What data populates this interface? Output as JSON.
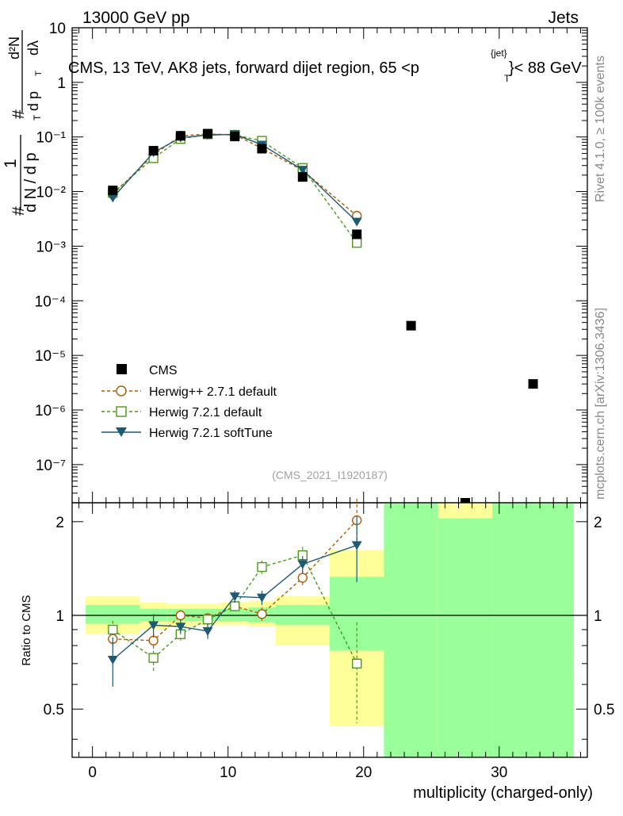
{
  "header": {
    "left": "13000 GeV pp",
    "right": "Jets"
  },
  "side_labels": {
    "rivet": "Rivet 4.1.0, ≥ 100k events",
    "mcplots": "mcplots.cern.ch [arXiv:1306.3436]"
  },
  "chart_data": {
    "type": "scatter",
    "title": "CMS, 13 TeV, AK8 jets, forward dijet region, 65 <p_T^{jet}< 88 GeV",
    "title_parts": {
      "main": "CMS, 13 TeV, AK8 jets, forward dijet region, 65 <p",
      "sub": "T",
      "sup": "{jet}",
      "end": "}< 88 GeV"
    },
    "watermark": "(CMS_2021_I1920187)",
    "xlabel": "multiplicity (charged-only)",
    "xlim": [
      -1.5,
      36.5
    ],
    "x_ticks": [
      0,
      10,
      20,
      30
    ],
    "main": {
      "yscale": "log",
      "ylim": [
        2e-08,
        10
      ],
      "ylabel": "1/(dN/dp_T) d²N/(dp_T dλ)",
      "ylabel_parts": {
        "hash": "#",
        "one": "1",
        "denom": "d N / d p",
        "denom_sub": "T",
        "num": "d²N",
        "num_d": "d p",
        "num_d_sub": "T",
        "num_dl": "dλ"
      },
      "y_tick_labels": [
        "10",
        "1",
        "10⁻¹",
        "10⁻²",
        "10⁻³",
        "10⁻⁴",
        "10⁻⁵",
        "10⁻⁶",
        "10⁻⁷"
      ],
      "y_tick_values": [
        10,
        1,
        0.1,
        0.01,
        0.001,
        0.0001,
        1e-05,
        1e-06,
        1e-07
      ]
    },
    "ratio": {
      "ylabel": "Ratio to CMS",
      "ylim": [
        0.35,
        2.3
      ],
      "y_ticks": [
        0.5,
        1,
        2
      ],
      "y_tick_labels": [
        "0.5",
        "1",
        "2"
      ]
    },
    "data": {
      "name": "CMS",
      "color": "#000000",
      "x": [
        1.5,
        4.5,
        6.5,
        8.5,
        10.5,
        12.5,
        15.5,
        19.5,
        23.5,
        27.5,
        32.5
      ],
      "y": [
        0.0105,
        0.056,
        0.105,
        0.115,
        0.102,
        0.061,
        0.0185,
        0.00165,
        3.5e-05,
        2e-08,
        3e-06
      ],
      "bands": [
        {
          "x0": -0.5,
          "x1": 3.5,
          "stat_lo": 0.94,
          "stat_hi": 1.08,
          "tot_lo": 0.87,
          "tot_hi": 1.15
        },
        {
          "x0": 3.5,
          "x1": 5.5,
          "stat_lo": 0.96,
          "stat_hi": 1.05,
          "tot_lo": 0.9,
          "tot_hi": 1.1
        },
        {
          "x0": 5.5,
          "x1": 7.5,
          "stat_lo": 0.96,
          "stat_hi": 1.05,
          "tot_lo": 0.92,
          "tot_hi": 1.09
        },
        {
          "x0": 7.5,
          "x1": 9.5,
          "stat_lo": 0.96,
          "stat_hi": 1.05,
          "tot_lo": 0.93,
          "tot_hi": 1.09
        },
        {
          "x0": 9.5,
          "x1": 11.5,
          "stat_lo": 0.96,
          "stat_hi": 1.05,
          "tot_lo": 0.93,
          "tot_hi": 1.1
        },
        {
          "x0": 11.5,
          "x1": 13.5,
          "stat_lo": 0.95,
          "stat_hi": 1.06,
          "tot_lo": 0.92,
          "tot_hi": 1.11
        },
        {
          "x0": 13.5,
          "x1": 17.5,
          "stat_lo": 0.93,
          "stat_hi": 1.08,
          "tot_lo": 0.8,
          "tot_hi": 1.15
        },
        {
          "x0": 17.5,
          "x1": 21.5,
          "stat_lo": 0.77,
          "stat_hi": 1.33,
          "tot_lo": 0.44,
          "tot_hi": 1.62
        },
        {
          "x0": 21.5,
          "x1": 25.5,
          "stat_lo": 0.35,
          "stat_hi": 2.3,
          "tot_lo": 0.35,
          "tot_hi": 2.3
        },
        {
          "x0": 25.5,
          "x1": 29.5,
          "stat_lo": 0.35,
          "stat_hi": 2.05,
          "tot_lo": 0.35,
          "tot_hi": 2.3
        },
        {
          "x0": 29.5,
          "x1": 35.5,
          "stat_lo": 0.35,
          "stat_hi": 2.3,
          "tot_lo": 0.35,
          "tot_hi": 2.3
        }
      ]
    },
    "series": [
      {
        "name": "Herwig++ 2.7.1 default",
        "color": "#b35900",
        "marker": "circle",
        "dash": "dashed",
        "x": [
          1.5,
          4.5,
          6.5,
          8.5,
          10.5,
          12.5,
          15.5,
          19.5
        ],
        "y": [
          0.0089,
          0.047,
          0.105,
          0.113,
          0.11,
          0.062,
          0.0245,
          0.0036
        ],
        "ratio": [
          0.84,
          0.83,
          1.0,
          0.98,
          1.07,
          1.01,
          1.32,
          2.02
        ],
        "ratio_err": [
          0.05,
          0.04,
          0.04,
          0.03,
          0.04,
          0.05,
          0.07,
          0.35
        ]
      },
      {
        "name": "Herwig 7.2.1 default",
        "color": "#4a9a1a",
        "marker": "square",
        "dash": "dashed",
        "x": [
          1.5,
          4.5,
          6.5,
          8.5,
          10.5,
          12.5,
          15.5,
          19.5
        ],
        "y": [
          0.0095,
          0.041,
          0.092,
          0.112,
          0.109,
          0.085,
          0.027,
          0.00115
        ],
        "ratio": [
          0.9,
          0.73,
          0.87,
          0.97,
          1.07,
          1.43,
          1.56,
          0.7
        ],
        "ratio_err": [
          0.06,
          0.07,
          0.04,
          0.04,
          0.04,
          0.07,
          0.1,
          0.25
        ]
      },
      {
        "name": "Herwig 7.2.1 softTune",
        "color": "#1d5a73",
        "marker": "triangle-down",
        "dash": "solid",
        "x": [
          1.5,
          4.5,
          6.5,
          8.5,
          10.5,
          12.5,
          15.5,
          19.5
        ],
        "y": [
          0.0077,
          0.052,
          0.097,
          0.108,
          0.112,
          0.072,
          0.025,
          0.0028
        ],
        "ratio": [
          0.72,
          0.93,
          0.92,
          0.89,
          1.15,
          1.14,
          1.46,
          1.68
        ],
        "ratio_err": [
          0.13,
          0.08,
          0.05,
          0.05,
          0.05,
          0.06,
          0.09,
          0.4
        ]
      }
    ],
    "legend": [
      "CMS",
      "Herwig++ 2.7.1 default",
      "Herwig 7.2.1 default",
      "Herwig 7.2.1 softTune"
    ],
    "legend_position": "center-left"
  }
}
